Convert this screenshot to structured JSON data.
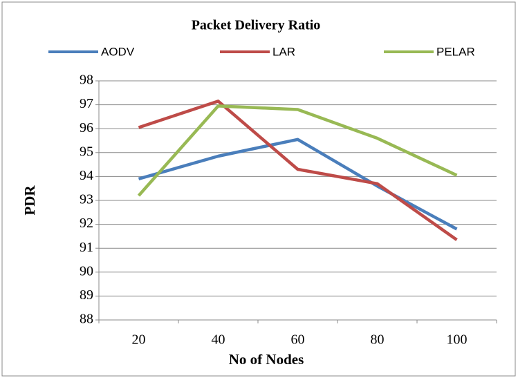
{
  "chart_data": {
    "type": "line",
    "title": "Packet Delivery Ratio",
    "x_label": "No of Nodes",
    "y_label": "PDR",
    "categories": [
      "20",
      "40",
      "60",
      "80",
      "100"
    ],
    "series": [
      {
        "name": "AODV",
        "color": "#4a7ebb",
        "values": [
          93.9,
          94.85,
          95.55,
          93.6,
          91.8
        ]
      },
      {
        "name": "LAR",
        "color": "#be4b48",
        "values": [
          96.05,
          97.15,
          94.3,
          93.7,
          91.35
        ]
      },
      {
        "name": "PELAR",
        "color": "#98b954",
        "values": [
          93.2,
          96.95,
          96.8,
          95.6,
          94.05
        ]
      }
    ],
    "ylim": [
      88,
      98
    ],
    "yticks": [
      88,
      89,
      90,
      91,
      92,
      93,
      94,
      95,
      96,
      97,
      98
    ],
    "grid": true,
    "legend": "top"
  }
}
